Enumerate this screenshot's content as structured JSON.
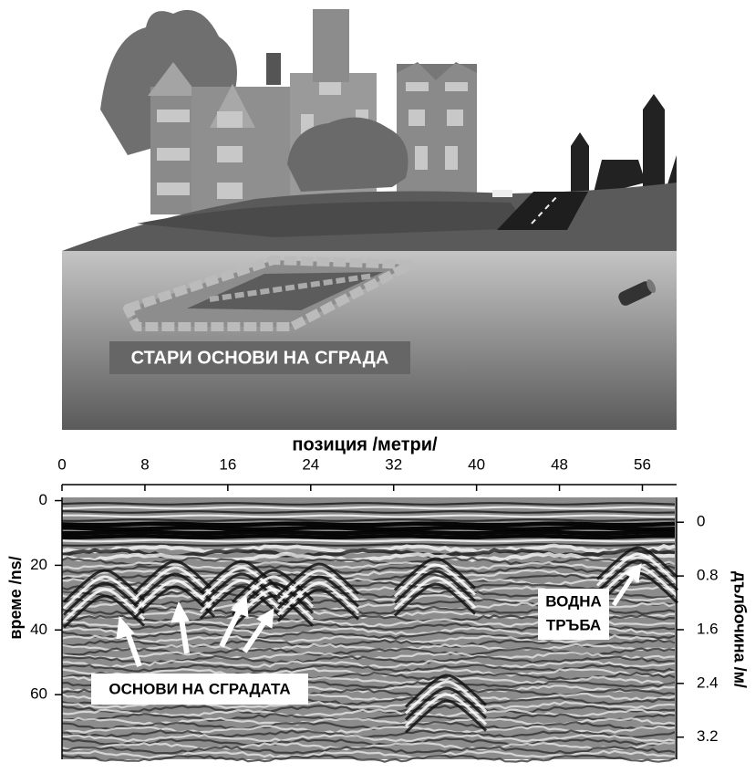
{
  "scene": {
    "label": "СТАРИ ОСНОВИ НА СГРАДА"
  },
  "radargram": {
    "x_axis": {
      "title": "позиция /метри/",
      "lim": [
        0,
        59.3
      ],
      "ticks": [
        0,
        8,
        16,
        24,
        32,
        40,
        48,
        56
      ]
    },
    "y_axis": {
      "title": "време /ns/",
      "lim": [
        -1,
        80
      ],
      "ticks": [
        0,
        20,
        40,
        60
      ]
    },
    "y2_axis": {
      "title": "дълбочина /м/",
      "lim": [
        -0.37,
        3.53
      ],
      "ticks": [
        0,
        0.8,
        1.6,
        2.4,
        3.2
      ]
    },
    "annotations": {
      "foundations": "ОСНОВИ НА СГРАДАТА",
      "pipe": [
        "ВОДНА",
        "ТРЪБА"
      ]
    }
  }
}
